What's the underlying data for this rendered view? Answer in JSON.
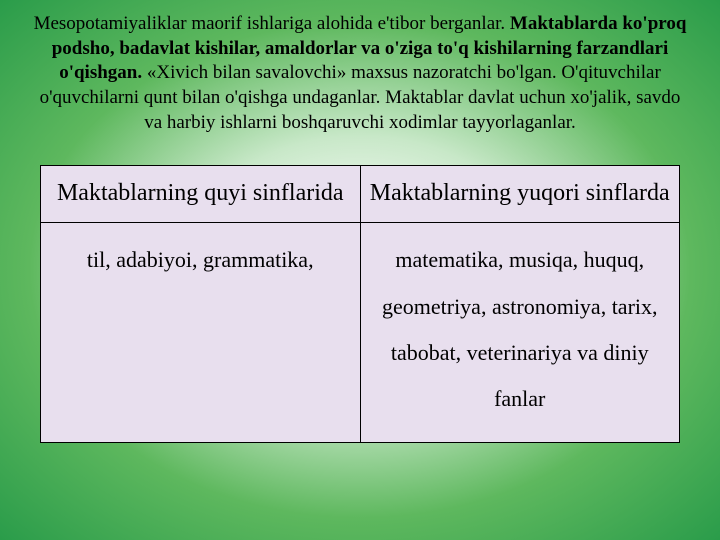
{
  "intro": {
    "p1a": "Mesopotamiyaliklar maorif ishlariga alohida e'tibor berganlar. ",
    "p1b": "Maktablarda ko'proq podsho, badavlat kishilar, amaldorlar va o'ziga to'q kishilarning farzandlari o'qishgan.",
    "p2a": " «Xivich bilan savalovchi» maxsus nazoratchi bo'lgan. O'qituvchilar o'quvchilarni qunt bilan o'qishga undaganlar. Maktablar davlat uchun xo'jalik, savdo va harbiy ishlarni boshqaruvchi xodimlar tayyorlaganlar."
  },
  "table": {
    "header_left": "Maktablarning quyi sinflarida",
    "header_right": "Maktablarning yuqori sinflarda",
    "body_left": "til, adabiyoi, grammatika,",
    "body_right": "matematika, musiqa, huquq, geometriya, astronomiya, tarix, tabobat, veterinariya va diniy fanlar"
  }
}
